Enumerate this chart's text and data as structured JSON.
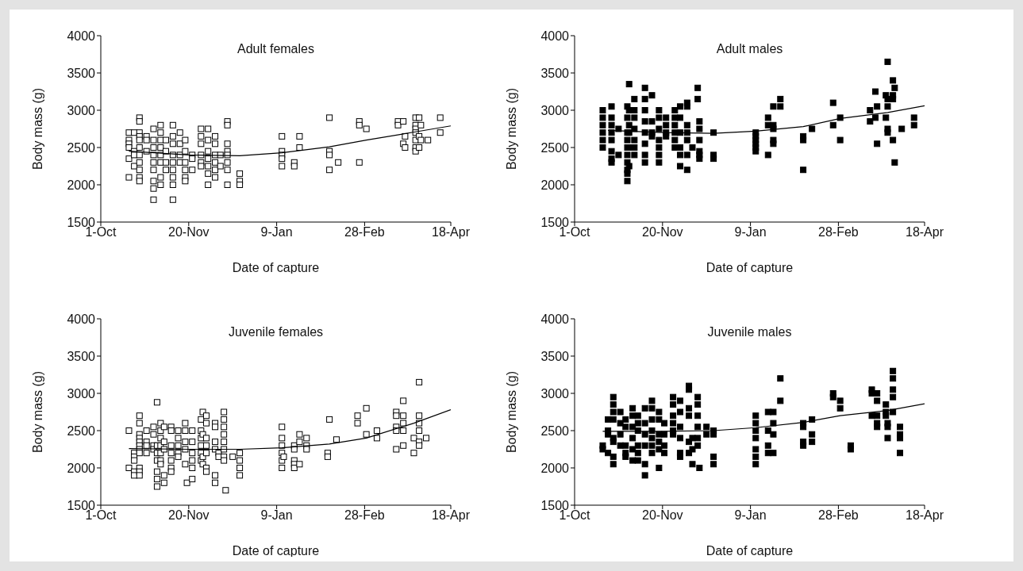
{
  "chart_data": [
    {
      "type": "scatter",
      "title": "Adult females",
      "xlabel": "Date of capture",
      "ylabel": "Body mass (g)",
      "xlim": [
        "2000-10-01",
        "2001-04-18"
      ],
      "xticks": [
        {
          "value": "2000-10-01",
          "label": "1-Oct"
        },
        {
          "value": "2000-11-20",
          "label": "20-Nov"
        },
        {
          "value": "2001-01-09",
          "label": "9-Jan"
        },
        {
          "value": "2001-02-28",
          "label": "28-Feb"
        },
        {
          "value": "2001-04-18",
          "label": "18-Apr"
        }
      ],
      "ylim": [
        1500,
        4000
      ],
      "yticks": [
        1500,
        2000,
        2500,
        3000,
        3500,
        4000
      ],
      "series": [
        {
          "type": "scatter",
          "color": "#ffffff",
          "marker": "square",
          "x": [
            "2000-10-17",
            "2000-10-17",
            "2000-10-17",
            "2000-10-17",
            "2000-10-17",
            "2000-10-17",
            "2000-10-20",
            "2000-10-20",
            "2000-10-20",
            "2000-10-20",
            "2000-10-23",
            "2000-10-23",
            "2000-10-23",
            "2000-10-23",
            "2000-10-23",
            "2000-10-23",
            "2000-10-23",
            "2000-10-23",
            "2000-10-23",
            "2000-10-23",
            "2000-10-23",
            "2000-10-27",
            "2000-10-27",
            "2000-10-27",
            "2000-10-31",
            "2000-10-31",
            "2000-10-31",
            "2000-10-31",
            "2000-10-31",
            "2000-10-31",
            "2000-10-31",
            "2000-10-31",
            "2000-10-31",
            "2000-11-04",
            "2000-11-04",
            "2000-11-04",
            "2000-11-04",
            "2000-11-04",
            "2000-11-04",
            "2000-11-04",
            "2000-11-04",
            "2000-11-07",
            "2000-11-07",
            "2000-11-07",
            "2000-11-07",
            "2000-11-11",
            "2000-11-11",
            "2000-11-11",
            "2000-11-11",
            "2000-11-11",
            "2000-11-11",
            "2000-11-11",
            "2000-11-11",
            "2000-11-11",
            "2000-11-15",
            "2000-11-15",
            "2000-11-15",
            "2000-11-15",
            "2000-11-18",
            "2000-11-18",
            "2000-11-18",
            "2000-11-18",
            "2000-11-18",
            "2000-11-18",
            "2000-11-22",
            "2000-11-22",
            "2000-11-22",
            "2000-11-27",
            "2000-11-27",
            "2000-11-27",
            "2000-11-27",
            "2000-11-27",
            "2000-11-27",
            "2000-12-01",
            "2000-12-01",
            "2000-12-01",
            "2000-12-01",
            "2000-12-01",
            "2000-12-01",
            "2000-12-01",
            "2000-12-05",
            "2000-12-05",
            "2000-12-05",
            "2000-12-05",
            "2000-12-05",
            "2000-12-05",
            "2000-12-08",
            "2000-12-08",
            "2000-12-12",
            "2000-12-12",
            "2000-12-12",
            "2000-12-12",
            "2000-12-12",
            "2000-12-12",
            "2000-12-12",
            "2000-12-12",
            "2000-12-19",
            "2000-12-19",
            "2000-12-19",
            "2001-01-12",
            "2001-01-12",
            "2001-01-12",
            "2001-01-12",
            "2001-01-12",
            "2001-01-19",
            "2001-01-19",
            "2001-01-22",
            "2001-01-22",
            "2001-02-08",
            "2001-02-08",
            "2001-02-08",
            "2001-02-08",
            "2001-02-13",
            "2001-02-25",
            "2001-02-25",
            "2001-02-25",
            "2001-03-01",
            "2001-03-19",
            "2001-03-19",
            "2001-03-22",
            "2001-03-22",
            "2001-03-23",
            "2001-03-23",
            "2001-03-29",
            "2001-03-29",
            "2001-03-29",
            "2001-03-29",
            "2001-03-29",
            "2001-03-29",
            "2001-03-29",
            "2001-03-31",
            "2001-03-31",
            "2001-03-31",
            "2001-04-01",
            "2001-04-01",
            "2001-04-05",
            "2001-04-12",
            "2001-04-12"
          ],
          "values": [
            2700,
            2600,
            2550,
            2500,
            2350,
            2100,
            2700,
            2450,
            2400,
            2250,
            2900,
            2850,
            2700,
            2650,
            2600,
            2500,
            2400,
            2300,
            2200,
            2100,
            2050,
            2650,
            2600,
            2450,
            2750,
            2600,
            2500,
            2400,
            2300,
            2200,
            2050,
            1950,
            1800,
            2800,
            2700,
            2600,
            2500,
            2400,
            2300,
            2100,
            2000,
            2600,
            2450,
            2300,
            2200,
            2800,
            2650,
            2550,
            2400,
            2300,
            2200,
            2100,
            2000,
            1800,
            2700,
            2550,
            2400,
            2300,
            2600,
            2450,
            2300,
            2200,
            2100,
            2050,
            2400,
            2350,
            2200,
            2750,
            2650,
            2550,
            2400,
            2300,
            2250,
            2750,
            2600,
            2450,
            2350,
            2250,
            2150,
            2000,
            2650,
            2550,
            2400,
            2300,
            2200,
            2100,
            2400,
            2250,
            2850,
            2800,
            2550,
            2450,
            2400,
            2300,
            2200,
            2000,
            2150,
            2050,
            2000,
            2650,
            2450,
            2400,
            2350,
            2250,
            2300,
            2250,
            2650,
            2500,
            2900,
            2450,
            2400,
            2200,
            2300,
            2850,
            2800,
            2300,
            2750,
            2850,
            2800,
            2850,
            2550,
            2650,
            2500,
            2900,
            2800,
            2750,
            2700,
            2600,
            2500,
            2450,
            2900,
            2650,
            2500,
            2800,
            2600,
            2600,
            2900,
            2700
          ]
        },
        {
          "type": "line",
          "color": "#000000",
          "x": [
            "2000-10-17",
            "2000-11-20",
            "2000-12-19",
            "2001-01-12",
            "2001-02-08",
            "2001-03-01",
            "2001-03-29",
            "2001-04-18"
          ],
          "values": [
            2450,
            2400,
            2390,
            2430,
            2510,
            2600,
            2710,
            2790
          ]
        }
      ]
    },
    {
      "type": "scatter",
      "title": "Adult males",
      "xlabel": "Date of capture",
      "ylabel": "Body mass (g)",
      "xlim": [
        "2000-10-01",
        "2001-04-18"
      ],
      "xticks": [
        {
          "value": "2000-10-01",
          "label": "1-Oct"
        },
        {
          "value": "2000-11-20",
          "label": "20-Nov"
        },
        {
          "value": "2001-01-09",
          "label": "9-Jan"
        },
        {
          "value": "2001-02-28",
          "label": "28-Feb"
        },
        {
          "value": "2001-04-18",
          "label": "18-Apr"
        }
      ],
      "ylim": [
        1500,
        4000
      ],
      "yticks": [
        1500,
        2000,
        2500,
        3000,
        3500,
        4000
      ],
      "series": [
        {
          "type": "scatter",
          "color": "#000000",
          "marker": "square",
          "x": [
            "2000-10-17",
            "2000-10-17",
            "2000-10-17",
            "2000-10-17",
            "2000-10-17",
            "2000-10-17",
            "2000-10-22",
            "2000-10-22",
            "2000-10-22",
            "2000-10-22",
            "2000-10-22",
            "2000-10-22",
            "2000-10-22",
            "2000-10-22",
            "2000-10-26",
            "2000-10-26",
            "2000-10-31",
            "2000-10-31",
            "2000-10-31",
            "2000-10-31",
            "2000-10-31",
            "2000-10-31",
            "2000-10-31",
            "2000-10-31",
            "2000-10-31",
            "2000-10-31",
            "2000-11-01",
            "2000-11-01",
            "2000-11-01",
            "2000-11-01",
            "2000-11-01",
            "2000-11-01",
            "2000-11-04",
            "2000-11-04",
            "2000-11-04",
            "2000-11-04",
            "2000-11-04",
            "2000-11-04",
            "2000-11-04",
            "2000-11-10",
            "2000-11-10",
            "2000-11-10",
            "2000-11-10",
            "2000-11-10",
            "2000-11-10",
            "2000-11-10",
            "2000-11-10",
            "2000-11-14",
            "2000-11-14",
            "2000-11-14",
            "2000-11-14",
            "2000-11-18",
            "2000-11-18",
            "2000-11-18",
            "2000-11-18",
            "2000-11-18",
            "2000-11-18",
            "2000-11-18",
            "2000-11-22",
            "2000-11-22",
            "2000-11-22",
            "2000-11-22",
            "2000-11-27",
            "2000-11-27",
            "2000-11-27",
            "2000-11-27",
            "2000-11-27",
            "2000-11-27",
            "2000-11-30",
            "2000-11-30",
            "2000-11-30",
            "2000-11-30",
            "2000-11-30",
            "2000-11-30",
            "2000-12-04",
            "2000-12-04",
            "2000-12-04",
            "2000-12-04",
            "2000-12-04",
            "2000-12-04",
            "2000-12-04",
            "2000-12-07",
            "2000-12-10",
            "2000-12-10",
            "2000-12-11",
            "2000-12-11",
            "2000-12-11",
            "2000-12-11",
            "2000-12-11",
            "2000-12-11",
            "2000-12-19",
            "2000-12-19",
            "2000-12-19",
            "2001-01-12",
            "2001-01-12",
            "2001-01-12",
            "2001-01-12",
            "2001-01-12",
            "2001-01-12",
            "2001-01-19",
            "2001-01-19",
            "2001-01-19",
            "2001-01-22",
            "2001-01-22",
            "2001-01-22",
            "2001-01-22",
            "2001-01-22",
            "2001-01-26",
            "2001-01-26",
            "2001-02-08",
            "2001-02-08",
            "2001-02-08",
            "2001-02-13",
            "2001-02-25",
            "2001-02-25",
            "2001-03-01",
            "2001-03-01",
            "2001-03-18",
            "2001-03-18",
            "2001-03-21",
            "2001-03-21",
            "2001-03-22",
            "2001-03-22",
            "2001-03-27",
            "2001-03-27",
            "2001-03-28",
            "2001-03-28",
            "2001-03-28",
            "2001-03-28",
            "2001-03-28",
            "2001-03-31",
            "2001-03-31",
            "2001-03-31",
            "2001-03-31",
            "2001-04-01",
            "2001-04-01",
            "2001-04-05",
            "2001-04-12",
            "2001-04-12"
          ],
          "values": [
            3000,
            2900,
            2800,
            2700,
            2600,
            2500,
            3050,
            2900,
            2800,
            2700,
            2600,
            2450,
            2350,
            2300,
            2750,
            2400,
            3050,
            2900,
            2700,
            2600,
            2500,
            2400,
            2300,
            2200,
            2150,
            2050,
            3350,
            3000,
            2800,
            2700,
            2500,
            2250,
            3150,
            3000,
            2900,
            2750,
            2600,
            2500,
            2400,
            3300,
            3150,
            3000,
            2850,
            2700,
            2550,
            2400,
            2300,
            3200,
            2850,
            2700,
            2650,
            3000,
            2900,
            2750,
            2600,
            2500,
            2400,
            2300,
            2900,
            2800,
            2700,
            2650,
            3000,
            2900,
            2800,
            2700,
            2600,
            2500,
            3050,
            2900,
            2700,
            2500,
            2400,
            2250,
            3100,
            3050,
            2800,
            2700,
            2600,
            2400,
            2200,
            2500,
            3300,
            3150,
            2850,
            2750,
            2600,
            2450,
            2400,
            2350,
            2700,
            2400,
            2350,
            2700,
            2650,
            2600,
            2550,
            2500,
            2450,
            2900,
            2800,
            2400,
            3050,
            2800,
            2750,
            2600,
            2550,
            3150,
            3050,
            2650,
            2600,
            2200,
            2750,
            3100,
            2800,
            2900,
            2600,
            3000,
            2850,
            3250,
            2900,
            3050,
            2550,
            3200,
            2900,
            3650,
            3150,
            3050,
            2750,
            2700,
            3400,
            3200,
            3150,
            2600,
            3300,
            2300,
            2750,
            2900,
            2800
          ]
        },
        {
          "type": "line",
          "color": "#000000",
          "x": [
            "2000-10-20",
            "2000-11-20",
            "2000-12-19",
            "2001-01-12",
            "2001-02-08",
            "2001-03-01",
            "2001-03-28",
            "2001-04-18"
          ],
          "values": [
            2730,
            2700,
            2690,
            2720,
            2780,
            2890,
            2970,
            3060
          ]
        }
      ]
    },
    {
      "type": "scatter",
      "title": "Juvenile females",
      "xlabel": "Date of capture",
      "ylabel": "Body mass (g)",
      "xlim": [
        "2000-10-01",
        "2001-04-18"
      ],
      "xticks": [
        {
          "value": "2000-10-01",
          "label": "1-Oct"
        },
        {
          "value": "2000-11-20",
          "label": "20-Nov"
        },
        {
          "value": "2001-01-09",
          "label": "9-Jan"
        },
        {
          "value": "2001-02-28",
          "label": "28-Feb"
        },
        {
          "value": "2001-04-18",
          "label": "18-Apr"
        }
      ],
      "ylim": [
        1500,
        4000
      ],
      "yticks": [
        1500,
        2000,
        2500,
        3000,
        3500,
        4000
      ],
      "series": [
        {
          "type": "scatter",
          "color": "#ffffff",
          "marker": "square",
          "x": [
            "2000-10-17",
            "2000-10-17",
            "2000-10-20",
            "2000-10-20",
            "2000-10-20",
            "2000-10-20",
            "2000-10-20",
            "2000-10-23",
            "2000-10-23",
            "2000-10-23",
            "2000-10-23",
            "2000-10-23",
            "2000-10-23",
            "2000-10-23",
            "2000-10-23",
            "2000-10-23",
            "2000-10-23",
            "2000-10-23",
            "2000-10-27",
            "2000-10-27",
            "2000-10-27",
            "2000-10-27",
            "2000-10-31",
            "2000-10-31",
            "2000-10-31",
            "2000-10-31",
            "2000-11-02",
            "2000-11-02",
            "2000-11-02",
            "2000-11-02",
            "2000-11-02",
            "2000-11-02",
            "2000-11-02",
            "2000-11-04",
            "2000-11-04",
            "2000-11-04",
            "2000-11-04",
            "2000-11-04",
            "2000-11-04",
            "2000-11-04",
            "2000-11-06",
            "2000-11-06",
            "2000-11-06",
            "2000-11-06",
            "2000-11-06",
            "2000-11-10",
            "2000-11-10",
            "2000-11-10",
            "2000-11-10",
            "2000-11-10",
            "2000-11-10",
            "2000-11-10",
            "2000-11-14",
            "2000-11-14",
            "2000-11-14",
            "2000-11-14",
            "2000-11-14",
            "2000-11-18",
            "2000-11-18",
            "2000-11-18",
            "2000-11-18",
            "2000-11-18",
            "2000-11-19",
            "2000-11-22",
            "2000-11-22",
            "2000-11-22",
            "2000-11-22",
            "2000-11-22",
            "2000-11-22",
            "2000-11-27",
            "2000-11-27",
            "2000-11-27",
            "2000-11-27",
            "2000-11-27",
            "2000-11-27",
            "2000-11-28",
            "2000-11-28",
            "2000-11-28",
            "2000-11-28",
            "2000-11-30",
            "2000-11-30",
            "2000-11-30",
            "2000-11-30",
            "2000-11-30",
            "2000-11-30",
            "2000-11-30",
            "2000-12-05",
            "2000-12-05",
            "2000-12-05",
            "2000-12-05",
            "2000-12-05",
            "2000-12-05",
            "2000-12-07",
            "2000-12-07",
            "2000-12-10",
            "2000-12-10",
            "2000-12-10",
            "2000-12-10",
            "2000-12-10",
            "2000-12-10",
            "2000-12-10",
            "2000-12-10",
            "2000-12-11",
            "2000-12-15",
            "2000-12-19",
            "2000-12-19",
            "2000-12-19",
            "2000-12-19",
            "2001-01-12",
            "2001-01-12",
            "2001-01-12",
            "2001-01-12",
            "2001-01-12",
            "2001-01-12",
            "2001-01-13",
            "2001-01-19",
            "2001-01-19",
            "2001-01-19",
            "2001-01-19",
            "2001-01-19",
            "2001-01-22",
            "2001-01-22",
            "2001-01-22",
            "2001-01-26",
            "2001-01-26",
            "2001-01-26",
            "2001-02-07",
            "2001-02-07",
            "2001-02-08",
            "2001-02-12",
            "2001-02-24",
            "2001-02-24",
            "2001-03-01",
            "2001-03-01",
            "2001-03-07",
            "2001-03-07",
            "2001-03-18",
            "2001-03-18",
            "2001-03-18",
            "2001-03-18",
            "2001-03-18",
            "2001-03-22",
            "2001-03-22",
            "2001-03-22",
            "2001-03-22",
            "2001-03-22",
            "2001-03-28",
            "2001-03-28",
            "2001-03-31",
            "2001-03-31",
            "2001-03-31",
            "2001-03-31",
            "2001-03-31",
            "2001-03-31",
            "2001-04-04"
          ],
          "values": [
            2500,
            2000,
            2200,
            2150,
            2100,
            1950,
            1900,
            2700,
            2600,
            2450,
            2400,
            2350,
            2300,
            2250,
            2200,
            2000,
            1950,
            1900,
            2500,
            2350,
            2300,
            2200,
            2550,
            2450,
            2300,
            2250,
            2880,
            2300,
            2200,
            2100,
            1950,
            1850,
            1750,
            2600,
            2500,
            2400,
            2300,
            2200,
            2100,
            2050,
            2550,
            2350,
            2250,
            1900,
            1800,
            2550,
            2500,
            2300,
            2200,
            2100,
            2000,
            1950,
            2500,
            2400,
            2300,
            2200,
            2150,
            2600,
            2500,
            2350,
            2250,
            2050,
            1800,
            2500,
            2350,
            2200,
            2100,
            2000,
            1850,
            2650,
            2500,
            2400,
            2300,
            2200,
            2100,
            2750,
            2450,
            2150,
            2050,
            2700,
            2600,
            2400,
            2300,
            2200,
            2000,
            1950,
            2600,
            2550,
            2350,
            2250,
            1900,
            1800,
            2200,
            2150,
            2750,
            2650,
            2550,
            2450,
            2350,
            2250,
            2150,
            2100,
            1700,
            2150,
            2200,
            2100,
            2000,
            1900,
            2550,
            2400,
            2300,
            2200,
            2100,
            2000,
            2150,
            2300,
            2250,
            2100,
            2050,
            2000,
            2450,
            2350,
            2050,
            2400,
            2300,
            2250,
            2200,
            2150,
            2650,
            2380,
            2700,
            2600,
            2800,
            2450,
            2500,
            2400,
            2750,
            2700,
            2550,
            2500,
            2250,
            2900,
            2700,
            2600,
            2500,
            2300,
            2400,
            2200,
            3150,
            2700,
            2600,
            2500,
            2350,
            2300,
            2400
          ]
        },
        {
          "type": "line",
          "color": "#000000",
          "x": [
            "2000-10-17",
            "2000-11-20",
            "2000-12-19",
            "2001-01-12",
            "2001-02-08",
            "2001-03-01",
            "2001-03-28",
            "2001-04-18"
          ],
          "values": [
            2260,
            2250,
            2250,
            2270,
            2320,
            2400,
            2600,
            2780
          ]
        }
      ]
    },
    {
      "type": "scatter",
      "title": "Juvenile males",
      "xlabel": "Date of capture",
      "ylabel": "Body mass (g)",
      "xlim": [
        "2000-10-01",
        "2001-04-18"
      ],
      "xticks": [
        {
          "value": "2000-10-01",
          "label": "1-Oct"
        },
        {
          "value": "2000-11-20",
          "label": "20-Nov"
        },
        {
          "value": "2001-01-09",
          "label": "9-Jan"
        },
        {
          "value": "2001-02-28",
          "label": "28-Feb"
        },
        {
          "value": "2001-04-18",
          "label": "18-Apr"
        }
      ],
      "ylim": [
        1500,
        4000
      ],
      "yticks": [
        1500,
        2000,
        2500,
        3000,
        3500,
        4000
      ],
      "series": [
        {
          "type": "scatter",
          "color": "#000000",
          "marker": "square",
          "x": [
            "2000-10-17",
            "2000-10-17",
            "2000-10-20",
            "2000-10-20",
            "2000-10-20",
            "2000-10-20",
            "2000-10-23",
            "2000-10-23",
            "2000-10-23",
            "2000-10-23",
            "2000-10-23",
            "2000-10-23",
            "2000-10-23",
            "2000-10-23",
            "2000-10-27",
            "2000-10-27",
            "2000-10-27",
            "2000-10-27",
            "2000-10-30",
            "2000-10-30",
            "2000-10-30",
            "2000-10-30",
            "2000-10-30",
            "2000-11-03",
            "2000-11-03",
            "2000-11-03",
            "2000-11-03",
            "2000-11-03",
            "2000-11-03",
            "2000-11-06",
            "2000-11-06",
            "2000-11-06",
            "2000-11-06",
            "2000-11-06",
            "2000-11-06",
            "2000-11-10",
            "2000-11-10",
            "2000-11-10",
            "2000-11-10",
            "2000-11-10",
            "2000-11-10",
            "2000-11-14",
            "2000-11-14",
            "2000-11-14",
            "2000-11-14",
            "2000-11-14",
            "2000-11-14",
            "2000-11-14",
            "2000-11-18",
            "2000-11-18",
            "2000-11-18",
            "2000-11-18",
            "2000-11-18",
            "2000-11-18",
            "2000-11-21",
            "2000-11-21",
            "2000-11-21",
            "2000-11-21",
            "2000-11-26",
            "2000-11-26",
            "2000-11-26",
            "2000-11-26",
            "2000-11-26",
            "2000-11-26",
            "2000-11-30",
            "2000-11-30",
            "2000-11-30",
            "2000-11-30",
            "2000-11-30",
            "2000-11-30",
            "2000-12-05",
            "2000-12-05",
            "2000-12-05",
            "2000-12-05",
            "2000-12-05",
            "2000-12-05",
            "2000-12-07",
            "2000-12-07",
            "2000-12-07",
            "2000-12-10",
            "2000-12-10",
            "2000-12-10",
            "2000-12-10",
            "2000-12-10",
            "2000-12-10",
            "2000-12-11",
            "2000-12-15",
            "2000-12-15",
            "2000-12-19",
            "2000-12-19",
            "2000-12-19",
            "2000-12-19",
            "2001-01-12",
            "2001-01-12",
            "2001-01-12",
            "2001-01-12",
            "2001-01-12",
            "2001-01-12",
            "2001-01-12",
            "2001-01-19",
            "2001-01-19",
            "2001-01-19",
            "2001-01-19",
            "2001-01-22",
            "2001-01-22",
            "2001-01-22",
            "2001-01-22",
            "2001-01-26",
            "2001-01-26",
            "2001-02-08",
            "2001-02-08",
            "2001-02-08",
            "2001-02-08",
            "2001-02-13",
            "2001-02-13",
            "2001-02-13",
            "2001-02-25",
            "2001-02-25",
            "2001-03-01",
            "2001-03-01",
            "2001-03-07",
            "2001-03-07",
            "2001-03-19",
            "2001-03-19",
            "2001-03-19",
            "2001-03-22",
            "2001-03-22",
            "2001-03-22",
            "2001-03-22",
            "2001-03-22",
            "2001-03-27",
            "2001-03-27",
            "2001-03-27",
            "2001-03-28",
            "2001-03-28",
            "2001-03-28",
            "2001-03-31",
            "2001-03-31",
            "2001-03-31",
            "2001-03-31",
            "2001-03-31",
            "2001-04-04",
            "2001-04-04",
            "2001-04-04",
            "2001-04-04"
          ],
          "values": [
            2300,
            2250,
            2650,
            2500,
            2450,
            2200,
            2950,
            2850,
            2750,
            2650,
            2400,
            2350,
            2150,
            2050,
            2750,
            2600,
            2450,
            2300,
            2650,
            2550,
            2300,
            2200,
            2150,
            2800,
            2700,
            2550,
            2400,
            2250,
            2100,
            2700,
            2600,
            2500,
            2300,
            2200,
            2100,
            2800,
            2600,
            2450,
            2300,
            2050,
            1900,
            2900,
            2800,
            2650,
            2500,
            2400,
            2300,
            2200,
            2750,
            2650,
            2450,
            2350,
            2250,
            2000,
            2600,
            2450,
            2300,
            2200,
            2950,
            2850,
            2700,
            2600,
            2500,
            2450,
            2900,
            2750,
            2550,
            2400,
            2200,
            2150,
            3100,
            3050,
            2800,
            2700,
            2350,
            2200,
            2400,
            2250,
            2050,
            2950,
            2850,
            2700,
            2550,
            2400,
            2300,
            2000,
            2550,
            2450,
            2500,
            2450,
            2150,
            2050,
            2700,
            2600,
            2500,
            2400,
            2250,
            2150,
            2050,
            2750,
            2500,
            2300,
            2200,
            2750,
            2600,
            2450,
            2200,
            3200,
            2900,
            2600,
            2550,
            2350,
            2300,
            2650,
            2450,
            2350,
            3000,
            2950,
            2900,
            2800,
            2300,
            2250,
            3050,
            3000,
            2700,
            3000,
            2900,
            2700,
            2600,
            2550,
            2850,
            2750,
            2700,
            2600,
            2550,
            2400,
            3300,
            3200,
            3050,
            2950,
            2750,
            2550,
            2450,
            2400,
            2200
          ]
        },
        {
          "type": "line",
          "color": "#000000",
          "x": [
            "2000-10-17",
            "2000-11-20",
            "2000-12-19",
            "2001-01-12",
            "2001-02-08",
            "2001-03-01",
            "2001-03-28",
            "2001-04-18"
          ],
          "values": [
            2490,
            2490,
            2500,
            2540,
            2610,
            2700,
            2770,
            2860
          ]
        }
      ]
    }
  ]
}
